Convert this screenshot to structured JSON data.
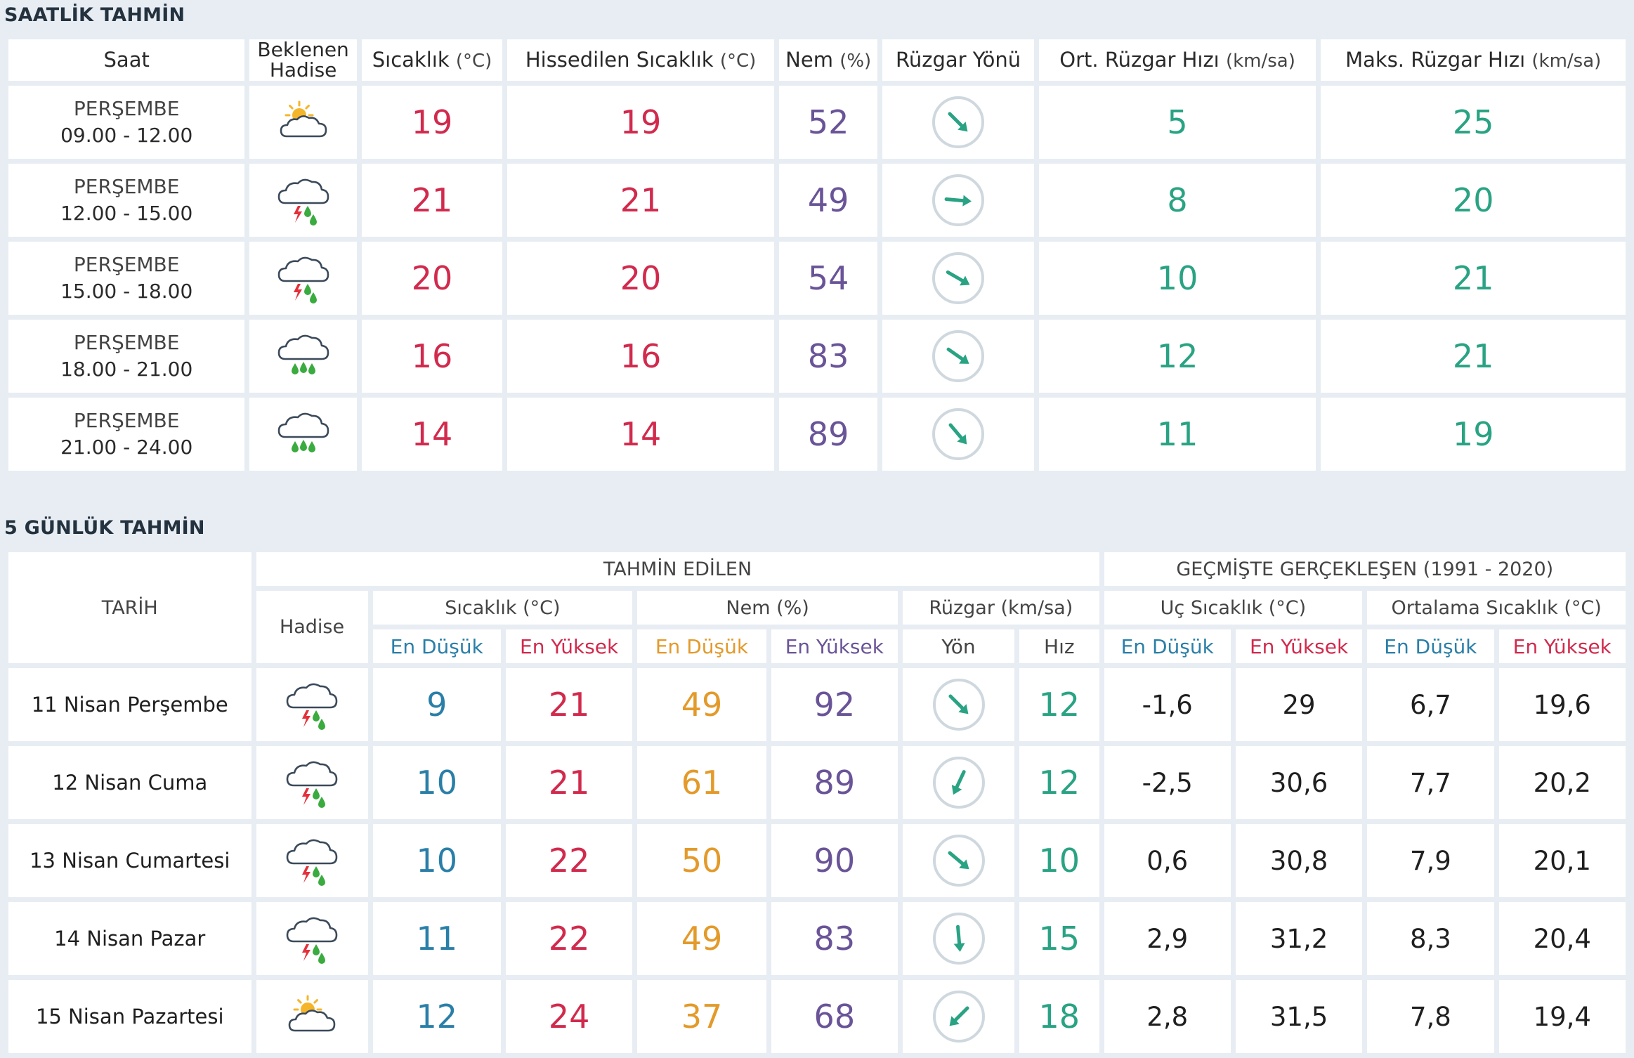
{
  "hourly": {
    "title": "SAATLİK TAHMİN",
    "headers": {
      "saat": "Saat",
      "hadise": "Beklenen Hadise",
      "sicaklik": "Sıcaklık",
      "sicaklik_unit": "(°C)",
      "hissedilen": "Hissedilen Sıcaklık",
      "hissedilen_unit": "(°C)",
      "nem": "Nem",
      "nem_unit": "(%)",
      "yon": "Rüzgar Yönü",
      "ort": "Ort. Rüzgar Hızı",
      "ort_unit": "(km/sa)",
      "maks": "Maks. Rüzgar Hızı",
      "maks_unit": "(km/sa)"
    },
    "rows": [
      {
        "day": "PERŞEMBE",
        "time": "09.00 - 12.00",
        "icon": "partly-sunny-icon",
        "temp": "19",
        "feels": "19",
        "humidity": "52",
        "wind_dir_deg": 135,
        "wind_avg": "5",
        "wind_max": "25"
      },
      {
        "day": "PERŞEMBE",
        "time": "12.00 - 15.00",
        "icon": "thunder-rain-icon",
        "temp": "21",
        "feels": "21",
        "humidity": "49",
        "wind_dir_deg": 95,
        "wind_avg": "8",
        "wind_max": "20"
      },
      {
        "day": "PERŞEMBE",
        "time": "15.00 - 18.00",
        "icon": "thunder-rain-icon",
        "temp": "20",
        "feels": "20",
        "humidity": "54",
        "wind_dir_deg": 120,
        "wind_avg": "10",
        "wind_max": "21"
      },
      {
        "day": "PERŞEMBE",
        "time": "18.00 - 21.00",
        "icon": "rain-icon",
        "temp": "16",
        "feels": "16",
        "humidity": "83",
        "wind_dir_deg": 125,
        "wind_avg": "12",
        "wind_max": "21"
      },
      {
        "day": "PERŞEMBE",
        "time": "21.00 - 24.00",
        "icon": "rain-icon",
        "temp": "14",
        "feels": "14",
        "humidity": "89",
        "wind_dir_deg": 140,
        "wind_avg": "11",
        "wind_max": "19"
      }
    ]
  },
  "daily": {
    "title": "5 GÜNLÜK TAHMİN",
    "headers": {
      "tarih": "TARİH",
      "tahmin": "TAHMİN EDİLEN",
      "gecmis": "GEÇMİŞTE GERÇEKLEŞEN (1991 - 2020)",
      "hadise": "Hadise",
      "sicaklik": "Sıcaklık (°C)",
      "nem": "Nem (%)",
      "ruzgar": "Rüzgar (km/sa)",
      "uc": "Uç Sıcaklık (°C)",
      "ortalama": "Ortalama Sıcaklık (°C)",
      "en_dusuk": "En Düşük",
      "en_yuksek": "En Yüksek",
      "yon": "Yön",
      "hiz": "Hız"
    },
    "rows": [
      {
        "date": "11 Nisan Perşembe",
        "icon": "thunder-rain-icon",
        "t_min": "9",
        "t_max": "21",
        "h_min": "49",
        "h_max": "92",
        "wind_dir_deg": 135,
        "wind_speed": "12",
        "ext_min": "-1,6",
        "ext_max": "29",
        "avg_min": "6,7",
        "avg_max": "19,6"
      },
      {
        "date": "12 Nisan Cuma",
        "icon": "thunder-rain-icon",
        "t_min": "10",
        "t_max": "21",
        "h_min": "61",
        "h_max": "89",
        "wind_dir_deg": 205,
        "wind_speed": "12",
        "ext_min": "-2,5",
        "ext_max": "30,6",
        "avg_min": "7,7",
        "avg_max": "20,2"
      },
      {
        "date": "13 Nisan Cumartesi",
        "icon": "thunder-rain-icon",
        "t_min": "10",
        "t_max": "22",
        "h_min": "50",
        "h_max": "90",
        "wind_dir_deg": 130,
        "wind_speed": "10",
        "ext_min": "0,6",
        "ext_max": "30,8",
        "avg_min": "7,9",
        "avg_max": "20,1"
      },
      {
        "date": "14 Nisan Pazar",
        "icon": "thunder-rain-icon",
        "t_min": "11",
        "t_max": "22",
        "h_min": "49",
        "h_max": "83",
        "wind_dir_deg": 175,
        "wind_speed": "15",
        "ext_min": "2,9",
        "ext_max": "31,2",
        "avg_min": "8,3",
        "avg_max": "20,4"
      },
      {
        "date": "15 Nisan Pazartesi",
        "icon": "partly-sunny-icon",
        "t_min": "12",
        "t_max": "24",
        "h_min": "37",
        "h_max": "68",
        "wind_dir_deg": 225,
        "wind_speed": "18",
        "ext_min": "2,8",
        "ext_max": "31,5",
        "avg_min": "7,8",
        "avg_max": "19,4"
      }
    ]
  },
  "colors": {
    "temp": "#d12a4d",
    "humidity": "#6a5498",
    "wind": "#29a383",
    "low": "#2a7fa8",
    "humidity_low": "#e39a2a",
    "arrow": "#29a383",
    "background": "#e7edf3"
  }
}
